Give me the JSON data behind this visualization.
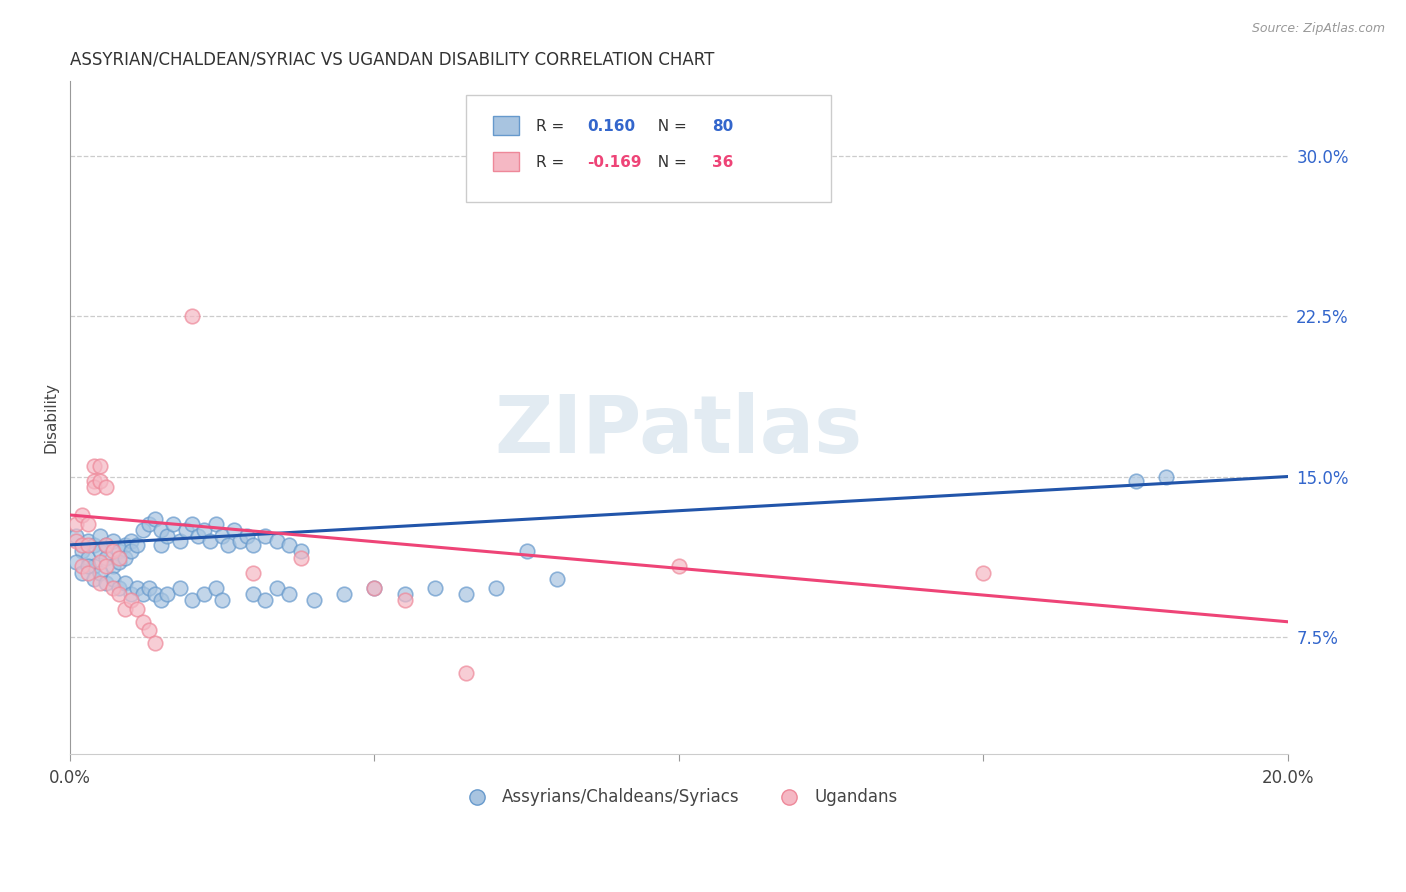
{
  "title": "ASSYRIAN/CHALDEAN/SYRIAC VS UGANDAN DISABILITY CORRELATION CHART",
  "source": "Source: ZipAtlas.com",
  "ylabel": "Disability",
  "ytick_labels": [
    "7.5%",
    "15.0%",
    "22.5%",
    "30.0%"
  ],
  "ytick_vals": [
    0.075,
    0.15,
    0.225,
    0.3
  ],
  "xlim": [
    0.0,
    0.2
  ],
  "ylim": [
    0.02,
    0.335
  ],
  "legend_blue_r": "0.160",
  "legend_blue_n": "80",
  "legend_pink_r": "-0.169",
  "legend_pink_n": "36",
  "legend_blue_label": "Assyrians/Chaldeans/Syriacs",
  "legend_pink_label": "Ugandans",
  "blue_color": "#a8c4e0",
  "blue_edge": "#6699cc",
  "pink_color": "#f5b8c4",
  "pink_edge": "#ee8899",
  "trendline_blue": "#2255aa",
  "trendline_pink": "#ee4477",
  "watermark": "ZIPatlas",
  "blue_trend_start": 0.118,
  "blue_trend_end": 0.15,
  "pink_trend_start": 0.132,
  "pink_trend_end": 0.082,
  "blue_points": [
    [
      0.001,
      0.122
    ],
    [
      0.002,
      0.118
    ],
    [
      0.002,
      0.115
    ],
    [
      0.003,
      0.12
    ],
    [
      0.003,
      0.112
    ],
    [
      0.004,
      0.118
    ],
    [
      0.004,
      0.108
    ],
    [
      0.005,
      0.122
    ],
    [
      0.005,
      0.115
    ],
    [
      0.006,
      0.118
    ],
    [
      0.006,
      0.112
    ],
    [
      0.007,
      0.12
    ],
    [
      0.007,
      0.108
    ],
    [
      0.008,
      0.115
    ],
    [
      0.008,
      0.11
    ],
    [
      0.009,
      0.118
    ],
    [
      0.009,
      0.112
    ],
    [
      0.01,
      0.12
    ],
    [
      0.01,
      0.115
    ],
    [
      0.011,
      0.118
    ],
    [
      0.012,
      0.125
    ],
    [
      0.013,
      0.128
    ],
    [
      0.014,
      0.13
    ],
    [
      0.015,
      0.125
    ],
    [
      0.015,
      0.118
    ],
    [
      0.016,
      0.122
    ],
    [
      0.017,
      0.128
    ],
    [
      0.018,
      0.12
    ],
    [
      0.019,
      0.125
    ],
    [
      0.02,
      0.128
    ],
    [
      0.021,
      0.122
    ],
    [
      0.022,
      0.125
    ],
    [
      0.023,
      0.12
    ],
    [
      0.024,
      0.128
    ],
    [
      0.025,
      0.122
    ],
    [
      0.026,
      0.118
    ],
    [
      0.027,
      0.125
    ],
    [
      0.028,
      0.12
    ],
    [
      0.029,
      0.122
    ],
    [
      0.03,
      0.118
    ],
    [
      0.032,
      0.122
    ],
    [
      0.034,
      0.12
    ],
    [
      0.036,
      0.118
    ],
    [
      0.038,
      0.115
    ],
    [
      0.001,
      0.11
    ],
    [
      0.002,
      0.105
    ],
    [
      0.003,
      0.108
    ],
    [
      0.004,
      0.102
    ],
    [
      0.005,
      0.105
    ],
    [
      0.006,
      0.1
    ],
    [
      0.007,
      0.102
    ],
    [
      0.008,
      0.098
    ],
    [
      0.009,
      0.1
    ],
    [
      0.01,
      0.095
    ],
    [
      0.011,
      0.098
    ],
    [
      0.012,
      0.095
    ],
    [
      0.013,
      0.098
    ],
    [
      0.014,
      0.095
    ],
    [
      0.015,
      0.092
    ],
    [
      0.016,
      0.095
    ],
    [
      0.018,
      0.098
    ],
    [
      0.02,
      0.092
    ],
    [
      0.022,
      0.095
    ],
    [
      0.024,
      0.098
    ],
    [
      0.025,
      0.092
    ],
    [
      0.03,
      0.095
    ],
    [
      0.032,
      0.092
    ],
    [
      0.034,
      0.098
    ],
    [
      0.036,
      0.095
    ],
    [
      0.04,
      0.092
    ],
    [
      0.045,
      0.095
    ],
    [
      0.05,
      0.098
    ],
    [
      0.055,
      0.095
    ],
    [
      0.06,
      0.098
    ],
    [
      0.065,
      0.095
    ],
    [
      0.07,
      0.098
    ],
    [
      0.075,
      0.115
    ],
    [
      0.08,
      0.102
    ],
    [
      0.175,
      0.148
    ],
    [
      0.18,
      0.15
    ]
  ],
  "pink_points": [
    [
      0.001,
      0.128
    ],
    [
      0.001,
      0.12
    ],
    [
      0.002,
      0.132
    ],
    [
      0.002,
      0.118
    ],
    [
      0.002,
      0.108
    ],
    [
      0.003,
      0.128
    ],
    [
      0.003,
      0.118
    ],
    [
      0.003,
      0.105
    ],
    [
      0.004,
      0.155
    ],
    [
      0.004,
      0.148
    ],
    [
      0.004,
      0.145
    ],
    [
      0.005,
      0.155
    ],
    [
      0.005,
      0.148
    ],
    [
      0.005,
      0.11
    ],
    [
      0.005,
      0.1
    ],
    [
      0.006,
      0.145
    ],
    [
      0.006,
      0.118
    ],
    [
      0.006,
      0.108
    ],
    [
      0.007,
      0.115
    ],
    [
      0.007,
      0.098
    ],
    [
      0.008,
      0.112
    ],
    [
      0.008,
      0.095
    ],
    [
      0.009,
      0.088
    ],
    [
      0.01,
      0.092
    ],
    [
      0.011,
      0.088
    ],
    [
      0.012,
      0.082
    ],
    [
      0.013,
      0.078
    ],
    [
      0.014,
      0.072
    ],
    [
      0.02,
      0.225
    ],
    [
      0.03,
      0.105
    ],
    [
      0.038,
      0.112
    ],
    [
      0.05,
      0.098
    ],
    [
      0.055,
      0.092
    ],
    [
      0.065,
      0.058
    ],
    [
      0.1,
      0.108
    ],
    [
      0.15,
      0.105
    ]
  ]
}
